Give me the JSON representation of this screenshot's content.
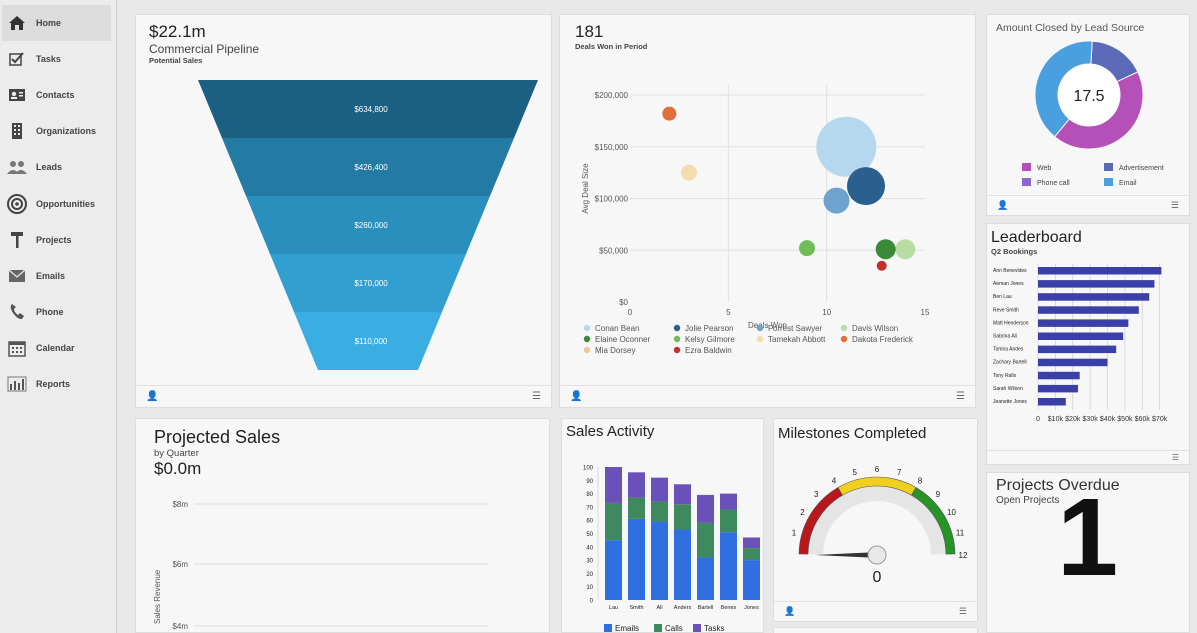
{
  "sidebar": {
    "items": [
      {
        "label": "Home",
        "icon": "home-icon",
        "active": true
      },
      {
        "label": "Tasks",
        "icon": "checkbox-icon"
      },
      {
        "label": "Contacts",
        "icon": "contact-card-icon"
      },
      {
        "label": "Organizations",
        "icon": "building-icon"
      },
      {
        "label": "Leads",
        "icon": "people-icon"
      },
      {
        "label": "Opportunities",
        "icon": "target-icon"
      },
      {
        "label": "Projects",
        "icon": "hammer-icon"
      },
      {
        "label": "Emails",
        "icon": "envelope-icon"
      },
      {
        "label": "Phone",
        "icon": "phone-icon"
      },
      {
        "label": "Calendar",
        "icon": "calendar-icon"
      },
      {
        "label": "Reports",
        "icon": "bar-chart-icon"
      }
    ]
  },
  "pipeline": {
    "amount": "$22.1m",
    "title": "Commercial Pipeline",
    "subtitle": "Potential Sales",
    "stages": [
      "$634,800",
      "$426,400",
      "$260,000",
      "$170,000",
      "$110,000"
    ],
    "colors": [
      "#1b5f82",
      "#237aa2",
      "#2b8fbd",
      "#339fd1",
      "#3aaee2"
    ]
  },
  "deals": {
    "count": "181",
    "subtitle": "Deals Won in Period",
    "chart_data": {
      "type": "scatter",
      "xlabel": "Deals Won",
      "ylabel": "Avg Deal Size",
      "xlim": [
        0,
        15
      ],
      "ylim": [
        0,
        200000
      ],
      "xticks": [
        "0",
        "5",
        "10",
        "15"
      ],
      "yticks": [
        "$0",
        "$50,000",
        "$100,000",
        "$150,000",
        "$200,000"
      ],
      "series": [
        {
          "name": "Conan Bean",
          "color": "#b6d8ee",
          "x": 11,
          "y": 150000,
          "size": 30
        },
        {
          "name": "Jolie Pearson",
          "color": "#2a5f8e",
          "x": 12,
          "y": 112000,
          "size": 19
        },
        {
          "name": "Forrest Sawyer",
          "color": "#6fa3cf",
          "x": 10.5,
          "y": 98000,
          "size": 13
        },
        {
          "name": "Davis Wilson",
          "color": "#b9dca5",
          "x": 14,
          "y": 51000,
          "size": 10
        },
        {
          "name": "Elaine Oconner",
          "color": "#3a8a3a",
          "x": 13,
          "y": 51000,
          "size": 10
        },
        {
          "name": "Kelsy Gilmore",
          "color": "#6fbf58",
          "x": 9,
          "y": 52000,
          "size": 8
        },
        {
          "name": "Tamekah Abbott",
          "color": "#f5dcae",
          "x": 3,
          "y": 125000,
          "size": 8
        },
        {
          "name": "Dakota Frederick",
          "color": "#e0703a",
          "x": 2,
          "y": 182000,
          "size": 7
        },
        {
          "name": "Mia Dorsey",
          "color": "#f0c898",
          "x": null,
          "y": null,
          "size": 0
        },
        {
          "name": "Ezra Baldwin",
          "color": "#c42f26",
          "x": 12.8,
          "y": 35000,
          "size": 5
        }
      ]
    }
  },
  "lead_source": {
    "title": "Amount Closed by Lead Source",
    "center_value": "17.5",
    "chart_data": {
      "type": "pie",
      "labels": [
        "Web",
        "Advertisement",
        "Phone call",
        "Email"
      ],
      "values": [
        43,
        17,
        0,
        40
      ],
      "colors": [
        "#b550b8",
        "#5a6ab8",
        "#8c68c8",
        "#4a9fdf"
      ]
    }
  },
  "leaderboard": {
    "title": "Leaderboard",
    "subtitle": "Q2 Bookings",
    "chart_data": {
      "type": "bar",
      "categories": [
        "Ann Benevides",
        "Aeman Jones",
        "Ben Lau",
        "Reve Smith",
        "Matt Henderson",
        "Sabrina Ali",
        "Tomira Andes",
        "Zachary Bartell",
        "Tony Ralls",
        "Sarah Wilson",
        "Jeanette Jones"
      ],
      "values": [
        71000,
        67000,
        64000,
        58000,
        52000,
        49000,
        45000,
        40000,
        24000,
        23000,
        16000
      ],
      "xlim": [
        0,
        80000
      ],
      "xticks": [
        "0",
        "$10k",
        "$20k",
        "$30k",
        "$40k",
        "$50k",
        "$60k",
        "$70k"
      ],
      "color": "#3b40a8"
    }
  },
  "projected_sales": {
    "title": "Projected Sales",
    "subtitle": "by Quarter",
    "amount": "$0.0m",
    "ylabel": "Sales Revenue",
    "yticks": [
      "$8m",
      "$6m",
      "$4m"
    ]
  },
  "sales_activity": {
    "title": "Sales Activity",
    "chart_data": {
      "type": "bar",
      "categories": [
        "Lau",
        "Smith",
        "Ali",
        "Anders",
        "Bartell",
        "Benes",
        "Jones"
      ],
      "series": [
        {
          "name": "Emails",
          "color": "#2f6fdf",
          "values": [
            45,
            61,
            59,
            53,
            32,
            51,
            30
          ]
        },
        {
          "name": "Calls",
          "color": "#3e8a5e",
          "values": [
            28,
            16,
            15,
            19,
            26,
            17,
            9
          ]
        },
        {
          "name": "Tasks",
          "color": "#6a51b9",
          "values": [
            27,
            19,
            18,
            15,
            21,
            12,
            8
          ]
        }
      ],
      "ylim": [
        0,
        100
      ],
      "yticks": [
        "0",
        "10",
        "20",
        "30",
        "40",
        "50",
        "60",
        "70",
        "80",
        "90",
        "100"
      ]
    }
  },
  "milestones": {
    "title": "Milestones Completed",
    "value": "0",
    "ticks": [
      "1",
      "2",
      "3",
      "4",
      "5",
      "6",
      "7",
      "8",
      "9",
      "10",
      "11",
      "12"
    ]
  },
  "projects_overdue": {
    "title": "Projects Overdue",
    "subtitle": "Open Projects",
    "value": "1"
  }
}
